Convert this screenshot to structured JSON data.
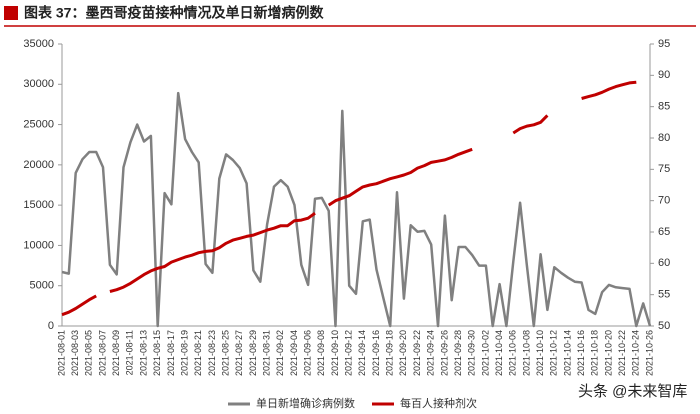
{
  "chart_data": {
    "type": "line",
    "title": "图表 37：墨西哥疫苗接种情况及单日新增病例数",
    "watermark": "头条 @未来智库",
    "categories": [
      "2021-08-01",
      null,
      "2021-08-03",
      null,
      "2021-08-05",
      null,
      "2021-08-07",
      null,
      "2021-08-09",
      null,
      "2021-08-11",
      null,
      "2021-08-13",
      null,
      "2021-08-15",
      null,
      "2021-08-17",
      null,
      "2021-08-19",
      null,
      "2021-08-21",
      null,
      "2021-08-23",
      null,
      "2021-08-25",
      null,
      "2021-08-27",
      null,
      "2021-08-29",
      null,
      "2021-08-31",
      null,
      "2021-09-02",
      null,
      "2021-09-04",
      null,
      "2021-09-06",
      null,
      "2021-09-08",
      null,
      "2021-09-10",
      null,
      "2021-09-12",
      null,
      "2021-09-14",
      null,
      "2021-09-16",
      null,
      "2021-09-18",
      null,
      "2021-09-20",
      null,
      "2021-09-22",
      null,
      "2021-09-24",
      null,
      "2021-09-26",
      null,
      "2021-09-28",
      null,
      "2021-09-30",
      null,
      "2021-10-02",
      null,
      "2021-10-04",
      null,
      "2021-10-06",
      null,
      "2021-10-08",
      null,
      "2021-10-10",
      null,
      "2021-10-12",
      null,
      "2021-10-14",
      null,
      "2021-10-16",
      null,
      "2021-10-18",
      null,
      "2021-10-20",
      null,
      "2021-10-22",
      null,
      "2021-10-24",
      null,
      "2021-10-26"
    ],
    "series": [
      {
        "name": "单日新增确诊病例数",
        "color": "#808080",
        "values": [
          6700,
          6500,
          19000,
          20700,
          21600,
          21600,
          19700,
          7600,
          6400,
          19700,
          22800,
          25000,
          22900,
          23600,
          0,
          16500,
          15100,
          28900,
          23200,
          21600,
          20300,
          7700,
          6600,
          18300,
          21300,
          20600,
          19600,
          17700,
          6900,
          5500,
          12600,
          17300,
          18100,
          17300,
          15000,
          7600,
          5100,
          15800,
          15900,
          14300,
          0,
          26700,
          5000,
          4000,
          13000,
          13200,
          7000,
          3500,
          0,
          16600,
          3400,
          12500,
          11700,
          11800,
          10100,
          0,
          13700,
          3200,
          9800,
          9800,
          8800,
          7500,
          7500,
          0,
          5200,
          0,
          8000,
          15300,
          7500,
          0,
          8900,
          2000,
          7300,
          6600,
          6000,
          5500,
          5400,
          2000,
          1500,
          4200,
          5100,
          4800,
          4700,
          4600,
          0,
          2800,
          0
        ]
      },
      {
        "name": "每百人接种剂次",
        "color": "#c00000",
        "axis": "y2",
        "values": [
          51.8,
          52.2,
          52.8,
          53.5,
          54.2,
          54.8,
          null,
          55.5,
          55.8,
          56.2,
          56.8,
          57.5,
          58.2,
          58.8,
          59.2,
          59.5,
          60.2,
          60.6,
          61.0,
          61.3,
          61.7,
          61.9,
          62.0,
          62.5,
          63.2,
          63.7,
          64.0,
          64.3,
          64.5,
          64.9,
          65.3,
          65.6,
          66.0,
          66.0,
          66.8,
          66.9,
          67.2,
          68.0,
          null,
          69.3,
          70.0,
          70.4,
          70.8,
          71.5,
          72.2,
          72.5,
          72.7,
          73.1,
          73.5,
          73.8,
          74.1,
          74.5,
          75.2,
          75.6,
          76.1,
          76.3,
          76.5,
          76.9,
          77.4,
          77.8,
          78.2,
          null,
          null,
          null,
          null,
          null,
          80.8,
          81.5,
          81.9,
          82.1,
          82.5,
          83.6,
          null,
          null,
          null,
          null,
          86.3,
          86.6,
          86.9,
          87.3,
          87.8,
          88.2,
          88.5,
          88.8,
          88.9,
          null,
          null
        ]
      }
    ],
    "ylim": [
      0,
      35000
    ],
    "yticks": [
      0,
      5000,
      10000,
      15000,
      20000,
      25000,
      30000,
      35000
    ],
    "y2lim": [
      50,
      95
    ],
    "y2ticks": [
      50,
      55,
      60,
      65,
      70,
      75,
      80,
      85,
      90,
      95
    ]
  }
}
